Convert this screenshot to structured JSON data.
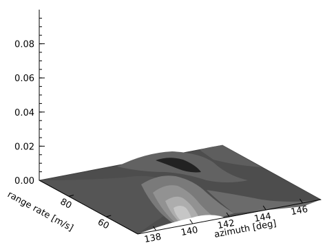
{
  "chart_data": {
    "type": "surface",
    "title": "",
    "xlabel": "azimuth [deg]",
    "ylabel": "range rate [m/s]",
    "zlabel": "",
    "x_ticks": [
      "138",
      "140",
      "142",
      "144",
      "146"
    ],
    "y_ticks": [
      "60",
      "80"
    ],
    "z_ticks": [
      "0.00",
      "0.02",
      "0.04",
      "0.06",
      "0.08"
    ],
    "xlim": [
      137,
      147
    ],
    "zlim": [
      0,
      0.1
    ],
    "grid": false,
    "legend": "none",
    "surface_colors": [
      "#4a4a4a",
      "#6a6a6a",
      "#8a8a8a",
      "#a8a8a8",
      "#c4c4c4",
      "#2a2a2a"
    ]
  }
}
